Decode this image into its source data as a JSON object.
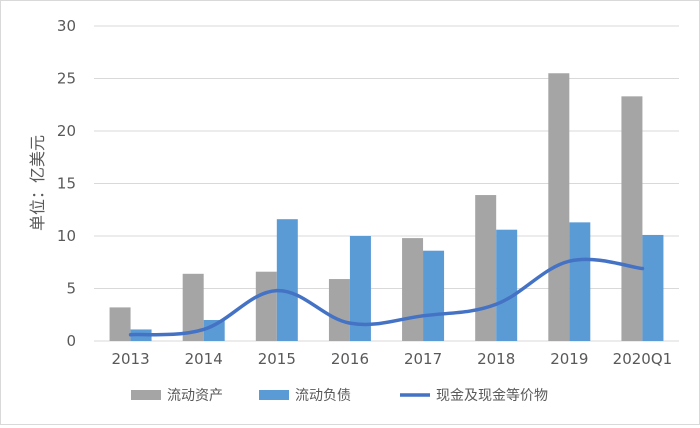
{
  "chart_data": {
    "type": "bar",
    "categories": [
      "2013",
      "2014",
      "2015",
      "2016",
      "2017",
      "2018",
      "2019",
      "2020Q1"
    ],
    "series": [
      {
        "name": "流动资产",
        "kind": "bar",
        "color": "#a5a5a5",
        "values": [
          3.2,
          6.4,
          6.6,
          5.9,
          9.8,
          13.9,
          25.5,
          23.3
        ]
      },
      {
        "name": "流动负债",
        "kind": "bar",
        "color": "#5b9bd5",
        "values": [
          1.1,
          2.0,
          11.6,
          10.0,
          8.6,
          10.6,
          11.3,
          10.1
        ]
      },
      {
        "name": "现金及现金等价物",
        "kind": "line",
        "color": "#4472c4",
        "values": [
          0.6,
          1.1,
          4.8,
          1.7,
          2.4,
          3.5,
          7.6,
          6.9
        ]
      }
    ],
    "title": "",
    "xlabel": "",
    "ylabel": "单位：亿美元",
    "ylim": [
      0,
      30
    ],
    "yticks": [
      0,
      5,
      10,
      15,
      20,
      25,
      30
    ],
    "grid": true,
    "legend_position": "bottom"
  }
}
